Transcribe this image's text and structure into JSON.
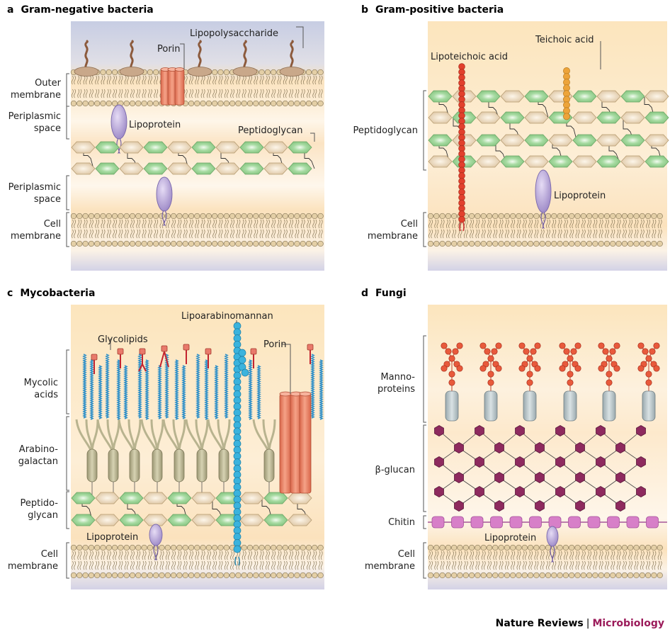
{
  "colors": {
    "bg_warm": "#fce8c3",
    "bg_pale": "#fdf7ec",
    "bg_blue": "#c9cfe4",
    "lipid_head": "#e4cfa6",
    "lipid_stroke": "#8a7a5a",
    "nag_green": "#9fd49a",
    "nam_tan": "#e8d2b0",
    "lps_brown": "#8c5a3c",
    "porin": "#ee8b6e",
    "lipoprotein": "#b9a8d8",
    "lta_red": "#e2402d",
    "teichoic": "#eda43a",
    "mycolic": "#2f8fc8",
    "arabino": "#b8b38f",
    "lam_blue": "#3bb3dd",
    "mannan_red": "#e85a3c",
    "mannoprotein": "#b5c2c6",
    "glucan": "#8e2a5e",
    "chitin": "#d77fc8",
    "brand_accent": "#9b1b5a"
  },
  "panels": {
    "a": {
      "letter": "a",
      "title": "Gram-negative bacteria",
      "labels": {
        "lps": "Lipopolysaccharide",
        "porin": "Porin",
        "outer_membrane": [
          "Outer",
          "membrane"
        ],
        "periplasm_top": [
          "Periplasmic",
          "space"
        ],
        "lipoprotein": "Lipoprotein",
        "peptidoglycan": "Peptidoglycan",
        "periplasm_bottom": [
          "Periplasmic",
          "space"
        ],
        "cell_membrane": [
          "Cell",
          "membrane"
        ]
      }
    },
    "b": {
      "letter": "b",
      "title": "Gram-positive bacteria",
      "labels": {
        "teichoic": "Teichoic acid",
        "lipoteichoic": "Lipoteichoic acid",
        "peptidoglycan": "Peptidoglycan",
        "lipoprotein": "Lipoprotein",
        "cell_membrane": [
          "Cell",
          "membrane"
        ]
      }
    },
    "c": {
      "letter": "c",
      "title": "Mycobacteria",
      "labels": {
        "lam": "Lipoarabinomannan",
        "glycolipids": "Glycolipids",
        "porin": "Porin",
        "mycolic": [
          "Mycolic",
          "acids"
        ],
        "arabinogalactan": [
          "Arabino-",
          "galactan"
        ],
        "peptidoglycan": [
          "Peptido-",
          "glycan"
        ],
        "lipoprotein": "Lipoprotein",
        "cell_membrane": [
          "Cell",
          "membrane"
        ]
      }
    },
    "d": {
      "letter": "d",
      "title": "Fungi",
      "labels": {
        "mannoproteins": [
          "Manno-",
          "proteins"
        ],
        "glucan": "β-glucan",
        "chitin": "Chitin",
        "lipoprotein": "Lipoprotein",
        "cell_membrane": [
          "Cell",
          "membrane"
        ]
      }
    }
  },
  "footer": {
    "journal": "Nature Reviews",
    "separator": "|",
    "section": "Microbiology"
  }
}
